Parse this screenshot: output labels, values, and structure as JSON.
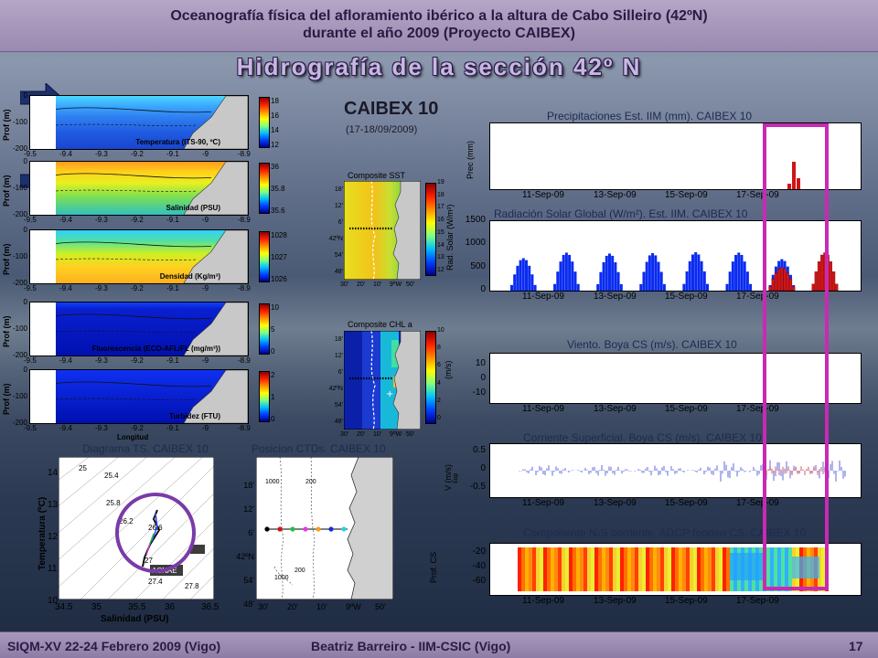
{
  "header": {
    "line1": "Oceanografía física del afloramiento ibérico a la altura de Cabo Silleiro (42ºN)",
    "line2": "durante el año 2009 (Proyecto CAIBEX)"
  },
  "title": "Hidrografía de la sección 42º N",
  "footer": {
    "left": "SIQM-XV 22-24 Febrero 2009 (Vigo)",
    "center": "Beatriz Barreiro  - IIM-CSIC (Vigo)",
    "page": "17"
  },
  "colors": {
    "accent_magenta": "#c82ab4",
    "circle_purple": "#7a3aa8",
    "arrow_navy": "#1c2f6e",
    "bar_blue": "#0a2bf0",
    "bar_red": "#d01515"
  },
  "sections": {
    "ylabel": "Prof (m)",
    "x_ticks": [
      "-9.5",
      "-9.4",
      "-9.3",
      "-9.2",
      "-9.1",
      "-9",
      "-8.9"
    ],
    "y_ticks": [
      "0",
      "-100",
      "-200"
    ],
    "xlabel_last": "Longitud",
    "panels": [
      {
        "label": "Temperatura (ITS-90, ºC)",
        "cbar_ticks": [
          "18",
          "16",
          "14",
          "12"
        ]
      },
      {
        "label": "Salinidad (PSU)",
        "cbar_ticks": [
          "36",
          "35.8",
          "35.6"
        ]
      },
      {
        "label": "Densidad (Kg/m³)",
        "cbar_ticks": [
          "1028",
          "1027",
          "1026"
        ]
      },
      {
        "label": "Fluorescencia (ECO-AFL/FL (mg/m³))",
        "cbar_ticks": [
          "10",
          "5",
          "0"
        ]
      },
      {
        "label": "Turbidez (FTU)",
        "cbar_ticks": [
          "2",
          "1",
          "0"
        ]
      }
    ]
  },
  "caibex": {
    "title": "CAIBEX 10",
    "dates": "(17-18/09/2009)"
  },
  "maps": {
    "sst": {
      "title": "Composite  SST",
      "cbar_label": "Rad. Solar (W/m²)",
      "cbar_ticks": [
        "19",
        "18",
        "17",
        "16",
        "15",
        "14",
        "13",
        "12"
      ]
    },
    "chl": {
      "title": "Composite  CHL a",
      "cbar_label": "(m/s)",
      "cbar_ticks": [
        "10",
        "8",
        "6",
        "4",
        "2",
        "0"
      ]
    },
    "lat_ticks": [
      "18'",
      "12'",
      "6'",
      "42ºN",
      "54'",
      "48'"
    ],
    "lon_ticks": [
      "30'",
      "20'",
      "10'",
      "9ºW",
      "50'"
    ]
  },
  "ts_diagram": {
    "title": "Diagrama TS. CAIBEX 10",
    "xlabel": "Salinidad (PSU)",
    "ylabel": "Temperatura (ºC)",
    "x_ticks": [
      "34.5",
      "35",
      "35.5",
      "36",
      "36.5"
    ],
    "y_ticks": [
      "14",
      "13",
      "12",
      "11",
      "10"
    ],
    "isopycnals": [
      "25",
      "25.4",
      "25.8",
      "26.2",
      "26.6",
      "27",
      "27.4",
      "27.8"
    ],
    "tags": [
      "ACNAE",
      "ACNAE"
    ]
  },
  "ctd_map": {
    "title": "Posicion CTDs. CAIBEX 10",
    "lat_ticks": [
      "18'",
      "12'",
      "6'",
      "42ºN",
      "54'",
      "48'"
    ],
    "lon_ticks": [
      "30'",
      "20'",
      "10'",
      "9ºW",
      "50'"
    ],
    "contours": [
      "1000",
      "200",
      "1000",
      "200"
    ]
  },
  "ts_charts": {
    "date_ticks": [
      "11-Sep-09",
      "13-Sep-09",
      "15-Sep-09",
      "17-Sep-09"
    ],
    "precip": {
      "title": "Precipitaciones Est. IIM (mm).  CAIBEX 10",
      "ylabel": "Prec    (mm)"
    },
    "solar": {
      "title": "Radiación Solar Global (W/m²). Est. IIM. CAIBEX 10",
      "y_ticks": [
        "1500",
        "1000",
        "500",
        "0"
      ]
    },
    "wind": {
      "title": "Viento. Boya CS (m/s). CAIBEX 10",
      "y_ticks": [
        "10",
        "0",
        "-10"
      ]
    },
    "current": {
      "title": "Corriente Superficial. Boya CS (m/s). CAIBEX 10",
      "ylabel": "V      (m/s)",
      "ysub": "sup",
      "y_ticks": [
        "0.5",
        "0",
        "-0.5"
      ]
    },
    "adcp": {
      "title": "Componente N-S corriente. ADCP fondeo CS. CAIBEX 10",
      "ylabel": "Prof. CS",
      "y_ticks": [
        "-20",
        "-40",
        "-60"
      ]
    }
  },
  "chart_data": [
    {
      "type": "bar",
      "title": "Radiación Solar Global (W/m²). Est. IIM. CAIBEX 10",
      "x": [
        "11-Sep-09",
        "12-Sep-09",
        "13-Sep-09",
        "14-Sep-09",
        "15-Sep-09",
        "16-Sep-09",
        "17-Sep-09",
        "18-Sep-09"
      ],
      "series": [
        {
          "values": [
            700,
            820,
            800,
            810,
            830,
            820,
            680,
            0
          ]
        }
      ],
      "highlight_series": [
        {
          "values": [
            0,
            0,
            0,
            0,
            0,
            0,
            500,
            820
          ]
        }
      ],
      "ylim": [
        0,
        1500
      ]
    },
    {
      "type": "bar",
      "title": "Precipitaciones Est. IIM (mm).  CAIBEX 10",
      "x": [
        "17-Sep-09",
        "17-Sep-09",
        "18-Sep-09"
      ],
      "values": [
        1,
        5,
        2
      ]
    }
  ]
}
